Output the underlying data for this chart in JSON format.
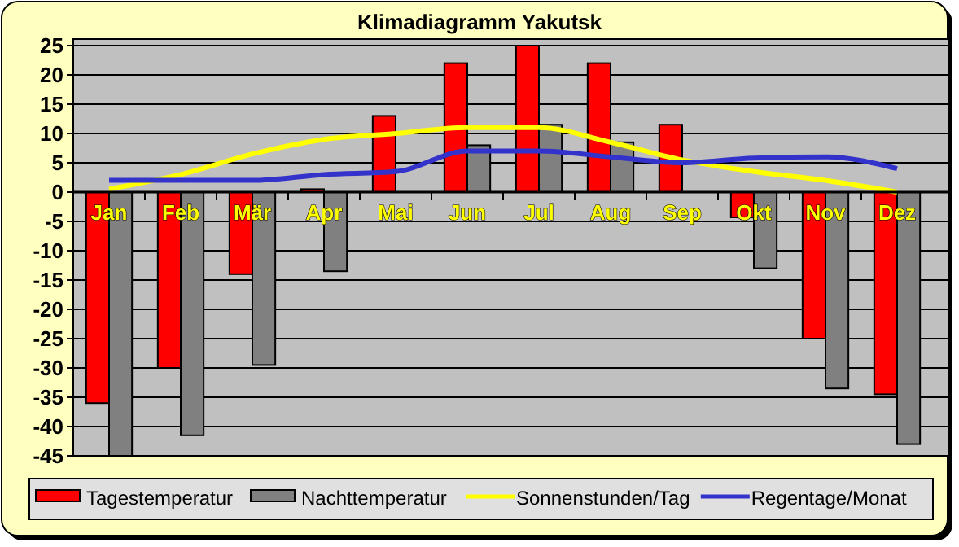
{
  "chart_data": {
    "type": "bar",
    "title": "Klimadiagramm Yakutsk",
    "categories": [
      "Jan",
      "Feb",
      "Mär",
      "Apr",
      "Mai",
      "Jun",
      "Jul",
      "Aug",
      "Sep",
      "Okt",
      "Nov",
      "Dez"
    ],
    "series": [
      {
        "name": "Tagestemperatur",
        "color": "#ff0000",
        "values": [
          -36,
          -30,
          -14,
          0.5,
          13,
          22,
          25,
          22,
          11.5,
          -4.3,
          -25,
          -34.5
        ]
      },
      {
        "name": "Nachttemperatur",
        "color": "#808080",
        "values": [
          -45,
          -41.5,
          -29.5,
          -13.5,
          null,
          8,
          11.5,
          8.5,
          null,
          -13,
          -33.5,
          -43
        ]
      },
      {
        "name": "Sonnenstunden/Tag",
        "type": "line",
        "color": "#ffff00",
        "values": [
          0.5,
          3,
          6.5,
          9,
          10,
          11,
          11,
          8.5,
          5.5,
          3.5,
          2,
          0
        ]
      },
      {
        "name": "Regentage/Monat",
        "type": "line",
        "color": "#3333cc",
        "values": [
          2,
          2,
          2,
          3,
          3.5,
          7,
          7,
          6,
          5,
          5.8,
          6,
          4
        ]
      }
    ],
    "ylim": [
      -45,
      25
    ],
    "yticks": [
      -45,
      -40,
      -35,
      -30,
      -25,
      -20,
      -15,
      -10,
      -5,
      0,
      5,
      10,
      15,
      20,
      25
    ],
    "grid": "y",
    "legend": "bottom"
  }
}
